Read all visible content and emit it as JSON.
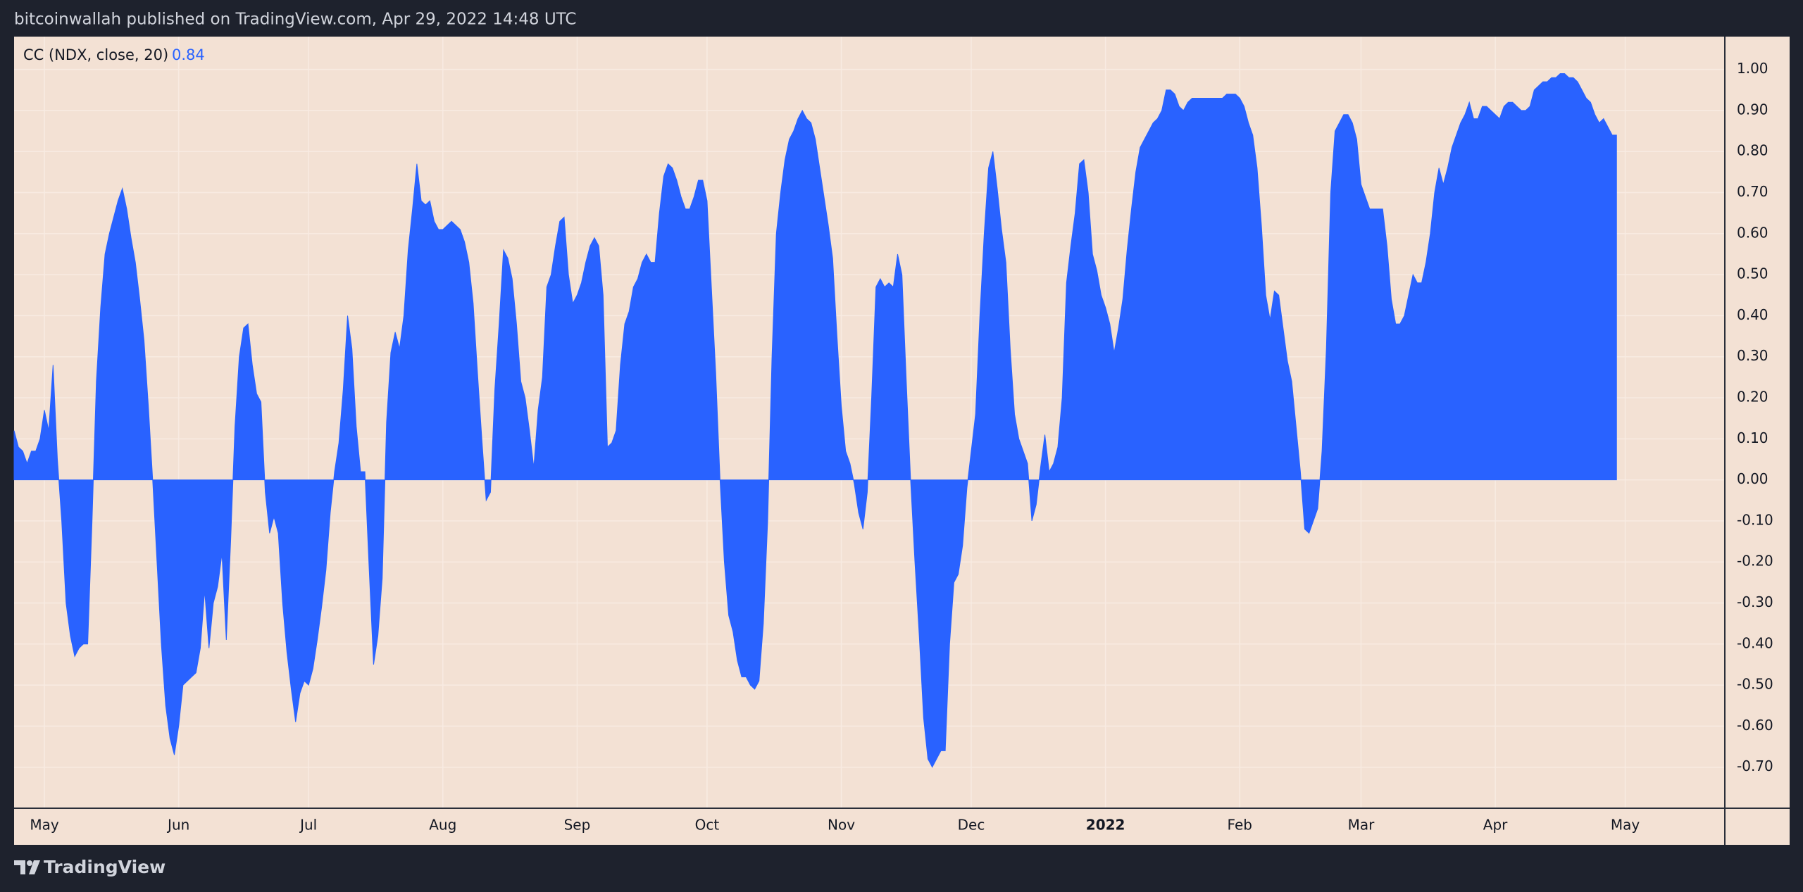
{
  "header": "bitcoinwallah published on TradingView.com, Apr 29, 2022 14:48 UTC",
  "footer_brand": "TradingView",
  "chart_data": {
    "type": "area",
    "legend_title": "CC (NDX, close, 20)",
    "color": "#2962ff",
    "grid": true,
    "x": [
      0,
      1,
      2,
      3,
      4,
      5,
      6,
      7,
      8,
      9,
      10,
      11,
      12,
      13,
      14,
      15,
      16,
      17,
      18,
      19,
      20,
      21,
      22,
      23,
      24,
      25,
      26,
      27,
      28,
      29,
      30,
      31,
      32,
      33,
      34,
      35,
      36,
      37,
      38,
      39,
      40,
      41,
      42,
      43,
      44,
      45,
      46,
      47,
      48,
      49,
      50,
      51,
      52,
      53,
      54,
      55,
      56,
      57,
      58,
      59,
      60,
      61,
      62,
      63,
      64,
      65,
      66,
      67,
      68,
      69,
      70,
      71,
      72,
      73,
      74,
      75,
      76,
      77,
      78,
      79,
      80,
      81,
      82,
      83,
      84,
      85,
      86,
      87,
      88,
      89,
      90,
      91,
      92,
      93,
      94,
      95,
      96,
      97,
      98,
      99,
      100,
      101,
      102,
      103,
      104,
      105,
      106,
      107,
      108,
      109,
      110,
      111,
      112,
      113,
      114,
      115,
      116,
      117,
      118,
      119,
      120,
      121,
      122,
      123,
      124,
      125,
      126,
      127,
      128,
      129,
      130,
      131,
      132,
      133,
      134,
      135,
      136,
      137,
      138,
      139,
      140,
      141,
      142,
      143,
      144,
      145,
      146,
      147,
      148,
      149,
      150,
      151,
      152,
      153,
      154,
      155,
      156,
      157,
      158,
      159,
      160,
      161,
      162,
      163,
      164,
      165,
      166,
      167,
      168,
      169,
      170,
      171,
      172,
      173,
      174,
      175,
      176,
      177,
      178,
      179,
      180,
      181,
      182,
      183,
      184,
      185,
      186,
      187,
      188,
      189,
      190,
      191,
      192,
      193,
      194,
      195,
      196,
      197,
      198,
      199,
      200,
      201,
      202,
      203,
      204,
      205,
      206,
      207,
      208,
      209,
      210,
      211,
      212,
      213,
      214,
      215,
      216,
      217,
      218,
      219,
      220,
      221,
      222,
      223,
      224,
      225,
      226,
      227,
      228,
      229,
      230,
      231,
      232,
      233,
      234,
      235,
      236,
      237,
      238,
      239,
      240,
      241,
      242,
      243,
      244,
      245,
      246,
      247,
      248,
      249,
      250,
      251,
      252,
      253,
      254,
      255,
      256,
      257,
      258,
      259,
      260,
      261,
      262,
      263,
      264,
      265,
      266,
      267,
      268,
      269,
      270,
      271,
      272,
      273,
      274,
      275,
      276,
      277,
      278,
      279,
      280,
      281,
      282,
      283,
      284,
      285,
      286,
      287,
      288,
      289,
      290,
      291,
      292,
      293,
      294,
      295,
      296,
      297,
      298,
      299,
      300,
      301,
      302,
      303,
      304,
      305,
      306,
      307,
      308,
      309,
      310,
      311,
      312,
      313,
      314,
      315,
      316,
      317,
      318,
      319,
      320,
      321,
      322,
      323,
      324,
      325,
      326,
      327,
      328,
      329,
      330,
      331,
      332,
      333,
      334,
      335,
      336,
      337,
      338,
      339,
      340,
      341,
      342,
      343,
      344,
      345,
      346,
      347,
      348,
      349,
      350,
      351,
      352,
      353,
      354,
      355,
      356,
      357,
      358,
      359,
      360,
      361,
      362,
      363,
      364,
      365,
      366,
      367,
      368,
      369,
      370
    ],
    "values": [
      0.12,
      0.08,
      0.07,
      0.04,
      0.07,
      0.07,
      0.1,
      0.17,
      0.12,
      0.28,
      0.05,
      -0.1,
      -0.3,
      -0.38,
      -0.43,
      -0.41,
      -0.4,
      -0.4,
      -0.1,
      0.24,
      0.42,
      0.55,
      0.6,
      0.64,
      0.68,
      0.71,
      0.66,
      0.59,
      0.53,
      0.44,
      0.34,
      0.18,
      0.0,
      -0.2,
      -0.4,
      -0.55,
      -0.63,
      -0.67,
      -0.6,
      -0.5,
      -0.49,
      -0.48,
      -0.47,
      -0.41,
      -0.27,
      -0.41,
      -0.3,
      -0.26,
      -0.18,
      -0.39,
      -0.15,
      0.13,
      0.3,
      0.37,
      0.38,
      0.28,
      0.21,
      0.19,
      -0.03,
      -0.13,
      -0.09,
      -0.13,
      -0.3,
      -0.42,
      -0.51,
      -0.59,
      -0.52,
      -0.49,
      -0.5,
      -0.46,
      -0.39,
      -0.31,
      -0.22,
      -0.08,
      0.02,
      0.09,
      0.22,
      0.4,
      0.32,
      0.13,
      0.02,
      0.02,
      -0.22,
      -0.45,
      -0.38,
      -0.24,
      0.14,
      0.31,
      0.36,
      0.32,
      0.4,
      0.56,
      0.66,
      0.77,
      0.68,
      0.67,
      0.68,
      0.63,
      0.61,
      0.61,
      0.62,
      0.63,
      0.62,
      0.61,
      0.58,
      0.53,
      0.43,
      0.26,
      0.1,
      -0.05,
      -0.03,
      0.22,
      0.38,
      0.56,
      0.54,
      0.49,
      0.38,
      0.24,
      0.2,
      0.12,
      0.03,
      0.17,
      0.25,
      0.47,
      0.5,
      0.57,
      0.63,
      0.64,
      0.5,
      0.43,
      0.45,
      0.48,
      0.53,
      0.57,
      0.59,
      0.57,
      0.45,
      0.08,
      0.09,
      0.12,
      0.28,
      0.38,
      0.41,
      0.47,
      0.49,
      0.53,
      0.55,
      0.53,
      0.53,
      0.65,
      0.74,
      0.77,
      0.76,
      0.73,
      0.69,
      0.66,
      0.66,
      0.69,
      0.73,
      0.73,
      0.68,
      0.47,
      0.26,
      0.0,
      -0.2,
      -0.33,
      -0.37,
      -0.44,
      -0.48,
      -0.48,
      -0.5,
      -0.51,
      -0.49,
      -0.35,
      -0.1,
      0.3,
      0.6,
      0.7,
      0.78,
      0.83,
      0.85,
      0.88,
      0.9,
      0.88,
      0.87,
      0.83,
      0.76,
      0.69,
      0.62,
      0.54,
      0.35,
      0.18,
      0.07,
      0.04,
      -0.01,
      -0.08,
      -0.12,
      -0.03,
      0.2,
      0.47,
      0.49,
      0.47,
      0.48,
      0.47,
      0.55,
      0.5,
      0.24,
      0.0,
      -0.2,
      -0.38,
      -0.58,
      -0.68,
      -0.7,
      -0.68,
      -0.66,
      -0.66,
      -0.4,
      -0.25,
      -0.23,
      -0.16,
      -0.02,
      0.07,
      0.16,
      0.4,
      0.6,
      0.76,
      0.8,
      0.71,
      0.61,
      0.53,
      0.32,
      0.16,
      0.1,
      0.07,
      0.04,
      -0.1,
      -0.06,
      0.03,
      0.11,
      0.02,
      0.04,
      0.08,
      0.2,
      0.48,
      0.57,
      0.65,
      0.77,
      0.78,
      0.7,
      0.55,
      0.51,
      0.45,
      0.42,
      0.38,
      0.31,
      0.37,
      0.44,
      0.56,
      0.66,
      0.75,
      0.81,
      0.83,
      0.85,
      0.87,
      0.88,
      0.9,
      0.95,
      0.95,
      0.94,
      0.91,
      0.9,
      0.92,
      0.93,
      0.93,
      0.93,
      0.93,
      0.93,
      0.93,
      0.93,
      0.93,
      0.94,
      0.94,
      0.94,
      0.93,
      0.91,
      0.87,
      0.84,
      0.76,
      0.62,
      0.45,
      0.39,
      0.46,
      0.45,
      0.37,
      0.29,
      0.24,
      0.13,
      0.02,
      -0.12,
      -0.13,
      -0.1,
      -0.07,
      0.07,
      0.32,
      0.7,
      0.85,
      0.87,
      0.89,
      0.89,
      0.87,
      0.83,
      0.72,
      0.69,
      0.66,
      0.66,
      0.66,
      0.66,
      0.57,
      0.44,
      0.38,
      0.38,
      0.4,
      0.45,
      0.5,
      0.48,
      0.48,
      0.53,
      0.6,
      0.7,
      0.76,
      0.72,
      0.76,
      0.81,
      0.84,
      0.87,
      0.89,
      0.92,
      0.88,
      0.88,
      0.91,
      0.91,
      0.9,
      0.89,
      0.88,
      0.91,
      0.92,
      0.92,
      0.91,
      0.9,
      0.9,
      0.91,
      0.95,
      0.96,
      0.97,
      0.97,
      0.98,
      0.98,
      0.99,
      0.99,
      0.98,
      0.98,
      0.97,
      0.95,
      0.93,
      0.92,
      0.89,
      0.87,
      0.88,
      0.86,
      0.84,
      0.84
    ],
    "xlim": [
      0,
      395
    ],
    "xticks": [
      {
        "value": 7,
        "label": "May"
      },
      {
        "value": 38,
        "label": "Jun"
      },
      {
        "value": 68,
        "label": "Jul"
      },
      {
        "value": 99,
        "label": "Aug"
      },
      {
        "value": 130,
        "label": "Sep"
      },
      {
        "value": 160,
        "label": "Oct"
      },
      {
        "value": 191,
        "label": "Nov"
      },
      {
        "value": 221,
        "label": "Dec"
      },
      {
        "value": 252,
        "label": "2022",
        "bold": true
      },
      {
        "value": 283,
        "label": "Feb"
      },
      {
        "value": 311,
        "label": "Mar"
      },
      {
        "value": 342,
        "label": "Apr"
      },
      {
        "value": 372,
        "label": "May"
      }
    ],
    "ylim": [
      -0.8,
      1.08
    ],
    "yticks": [
      {
        "value": 1,
        "label": "1.00"
      },
      {
        "value": 0.9,
        "label": "0.90"
      },
      {
        "value": 0.8,
        "label": "0.80"
      },
      {
        "value": 0.7,
        "label": "0.70"
      },
      {
        "value": 0.6,
        "label": "0.60"
      },
      {
        "value": 0.5,
        "label": "0.50"
      },
      {
        "value": 0.4,
        "label": "0.40"
      },
      {
        "value": 0.3,
        "label": "0.30"
      },
      {
        "value": 0.2,
        "label": "0.20"
      },
      {
        "value": 0.1,
        "label": "0.10"
      },
      {
        "value": 0,
        "label": "0.00"
      },
      {
        "value": -0.1,
        "label": "-0.10"
      },
      {
        "value": -0.2,
        "label": "-0.20"
      },
      {
        "value": -0.3,
        "label": "-0.30"
      },
      {
        "value": -0.4,
        "label": "-0.40"
      },
      {
        "value": -0.5,
        "label": "-0.50"
      },
      {
        "value": -0.6,
        "label": "-0.60"
      },
      {
        "value": -0.7,
        "label": "-0.70"
      }
    ]
  }
}
